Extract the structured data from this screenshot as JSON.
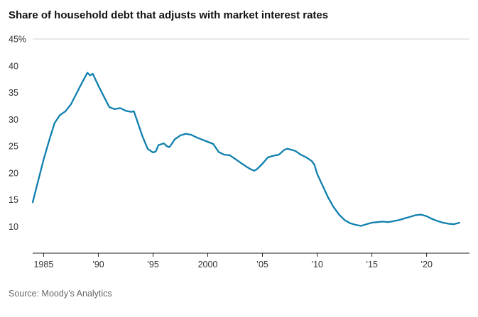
{
  "page": {
    "title": "Share of household debt that adjusts with market interest rates",
    "source": "Source: Moody’s Analytics"
  },
  "colors": {
    "line": "#0e7fae",
    "axis": "#222222",
    "grid": "#d0d0d0",
    "tick_text": "#333333",
    "title_text": "#121212",
    "source_text": "#666666"
  },
  "chart_data": {
    "type": "line",
    "title": "Share of household debt that adjusts with market interest rates",
    "xlabel": "",
    "ylabel": "",
    "unit": "%",
    "xlim": [
      1984,
      2023.4
    ],
    "ylim": [
      5,
      45
    ],
    "grid": "top-rule-only",
    "legend": "none",
    "yticks": [
      {
        "value": 45,
        "label": "45%"
      },
      {
        "value": 40,
        "label": "40"
      },
      {
        "value": 35,
        "label": "35"
      },
      {
        "value": 30,
        "label": "30"
      },
      {
        "value": 25,
        "label": "25"
      },
      {
        "value": 20,
        "label": "20"
      },
      {
        "value": 15,
        "label": "15"
      },
      {
        "value": 10,
        "label": "10"
      }
    ],
    "xticks": [
      {
        "value": 1985,
        "label": "1985"
      },
      {
        "value": 1990,
        "label": "’90"
      },
      {
        "value": 1995,
        "label": "’95"
      },
      {
        "value": 2000,
        "label": "2000"
      },
      {
        "value": 2005,
        "label": "’05"
      },
      {
        "value": 2010,
        "label": "’10"
      },
      {
        "value": 2015,
        "label": "’15"
      },
      {
        "value": 2020,
        "label": "’20"
      }
    ],
    "series": [
      {
        "name": "Share of household debt that adjusts with market interest rates",
        "x": [
          1984,
          1984.5,
          1985,
          1985.5,
          1986,
          1986.5,
          1987,
          1987.5,
          1988,
          1988.5,
          1989,
          1989.25,
          1989.5,
          1990,
          1990.5,
          1991,
          1991.5,
          1992,
          1992.5,
          1993,
          1993.25,
          1993.5,
          1994,
          1994.5,
          1995,
          1995.25,
          1995.5,
          1996,
          1996.25,
          1996.5,
          1997,
          1997.5,
          1998,
          1998.5,
          1999,
          1999.5,
          2000,
          2000.5,
          2001,
          2001.5,
          2002,
          2002.5,
          2003,
          2003.5,
          2004,
          2004.25,
          2004.5,
          2005,
          2005.5,
          2006,
          2006.5,
          2007,
          2007.25,
          2007.5,
          2008,
          2008.5,
          2009,
          2009.5,
          2009.75,
          2010,
          2010.5,
          2011,
          2011.5,
          2012,
          2012.5,
          2013,
          2013.5,
          2014,
          2014.5,
          2015,
          2015.5,
          2016,
          2016.5,
          2017,
          2017.5,
          2018,
          2018.5,
          2019,
          2019.5,
          2020,
          2020.5,
          2021,
          2021.5,
          2022,
          2022.5,
          2023
        ],
        "y": [
          14.5,
          18.5,
          22.5,
          26,
          29.3,
          30.8,
          31.5,
          32.8,
          34.8,
          36.8,
          38.7,
          38.2,
          38.5,
          36.3,
          34.3,
          32.3,
          31.9,
          32.1,
          31.6,
          31.4,
          31.5,
          30,
          27,
          24.5,
          23.8,
          24,
          25.2,
          25.5,
          25,
          24.8,
          26.3,
          27,
          27.3,
          27.1,
          26.6,
          26.2,
          25.8,
          25.4,
          23.9,
          23.4,
          23.3,
          22.6,
          21.9,
          21.2,
          20.6,
          20.4,
          20.7,
          21.7,
          22.9,
          23.2,
          23.4,
          24.3,
          24.5,
          24.4,
          24.1,
          23.4,
          22.9,
          22.2,
          21.5,
          19.8,
          17.6,
          15.4,
          13.6,
          12.2,
          11.2,
          10.6,
          10.3,
          10.1,
          10.4,
          10.7,
          10.8,
          10.9,
          10.8,
          11,
          11.2,
          11.5,
          11.8,
          12.1,
          12.2,
          11.9,
          11.4,
          11,
          10.7,
          10.5,
          10.4,
          10.7
        ]
      }
    ]
  }
}
